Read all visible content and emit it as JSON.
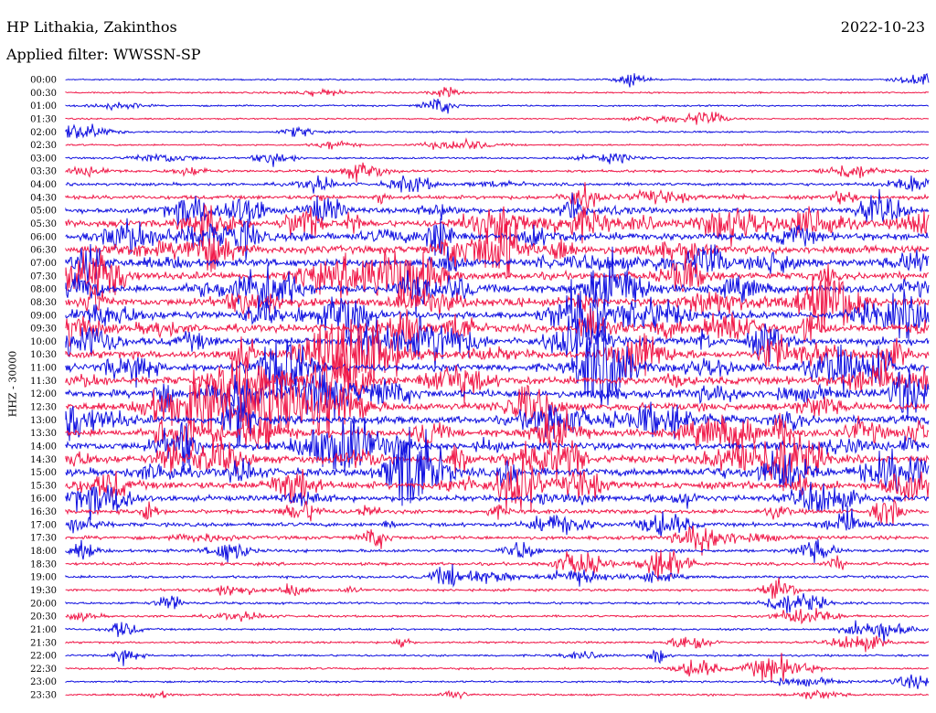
{
  "header": {
    "station": "HP Lithakia, Zakinthos",
    "date": "2022-10-23",
    "filter_label": "Applied filter: WWSSN-SP"
  },
  "chart_data": {
    "type": "line",
    "title": "HP Lithakia, Zakinthos",
    "ylabel": "HHZ - 30000",
    "colors": [
      "#1010e0",
      "#f01848"
    ],
    "rows": [
      {
        "label": "00:00",
        "activity": 0.1
      },
      {
        "label": "00:30",
        "activity": 0.12
      },
      {
        "label": "01:00",
        "activity": 0.12
      },
      {
        "label": "01:30",
        "activity": 0.1
      },
      {
        "label": "02:00",
        "activity": 0.14
      },
      {
        "label": "02:30",
        "activity": 0.12
      },
      {
        "label": "03:00",
        "activity": 0.15
      },
      {
        "label": "03:30",
        "activity": 0.25
      },
      {
        "label": "04:00",
        "activity": 0.32
      },
      {
        "label": "04:30",
        "activity": 0.45
      },
      {
        "label": "05:00",
        "activity": 0.65
      },
      {
        "label": "05:30",
        "activity": 0.85
      },
      {
        "label": "06:00",
        "activity": 0.95
      },
      {
        "label": "06:30",
        "activity": 1.0
      },
      {
        "label": "07:00",
        "activity": 1.0
      },
      {
        "label": "07:30",
        "activity": 1.0
      },
      {
        "label": "08:00",
        "activity": 1.0
      },
      {
        "label": "08:30",
        "activity": 1.0
      },
      {
        "label": "09:00",
        "activity": 1.0
      },
      {
        "label": "09:30",
        "activity": 1.0
      },
      {
        "label": "10:00",
        "activity": 1.0
      },
      {
        "label": "10:30",
        "activity": 1.0
      },
      {
        "label": "11:00",
        "activity": 1.0
      },
      {
        "label": "11:30",
        "activity": 1.0
      },
      {
        "label": "12:00",
        "activity": 1.0
      },
      {
        "label": "12:30",
        "activity": 1.0
      },
      {
        "label": "13:00",
        "activity": 1.0
      },
      {
        "label": "13:30",
        "activity": 1.0
      },
      {
        "label": "14:00",
        "activity": 1.0
      },
      {
        "label": "14:30",
        "activity": 1.0
      },
      {
        "label": "15:00",
        "activity": 1.0
      },
      {
        "label": "15:30",
        "activity": 0.95
      },
      {
        "label": "16:00",
        "activity": 0.7
      },
      {
        "label": "16:30",
        "activity": 0.5
      },
      {
        "label": "17:00",
        "activity": 0.45
      },
      {
        "label": "17:30",
        "activity": 0.4
      },
      {
        "label": "18:00",
        "activity": 0.35
      },
      {
        "label": "18:30",
        "activity": 0.32
      },
      {
        "label": "19:00",
        "activity": 0.28
      },
      {
        "label": "19:30",
        "activity": 0.25
      },
      {
        "label": "20:00",
        "activity": 0.22
      },
      {
        "label": "20:30",
        "activity": 0.2
      },
      {
        "label": "21:00",
        "activity": 0.18
      },
      {
        "label": "21:30",
        "activity": 0.18
      },
      {
        "label": "22:00",
        "activity": 0.18
      },
      {
        "label": "22:30",
        "activity": 0.18
      },
      {
        "label": "23:00",
        "activity": 0.16
      },
      {
        "label": "23:30",
        "activity": 0.16
      }
    ]
  }
}
